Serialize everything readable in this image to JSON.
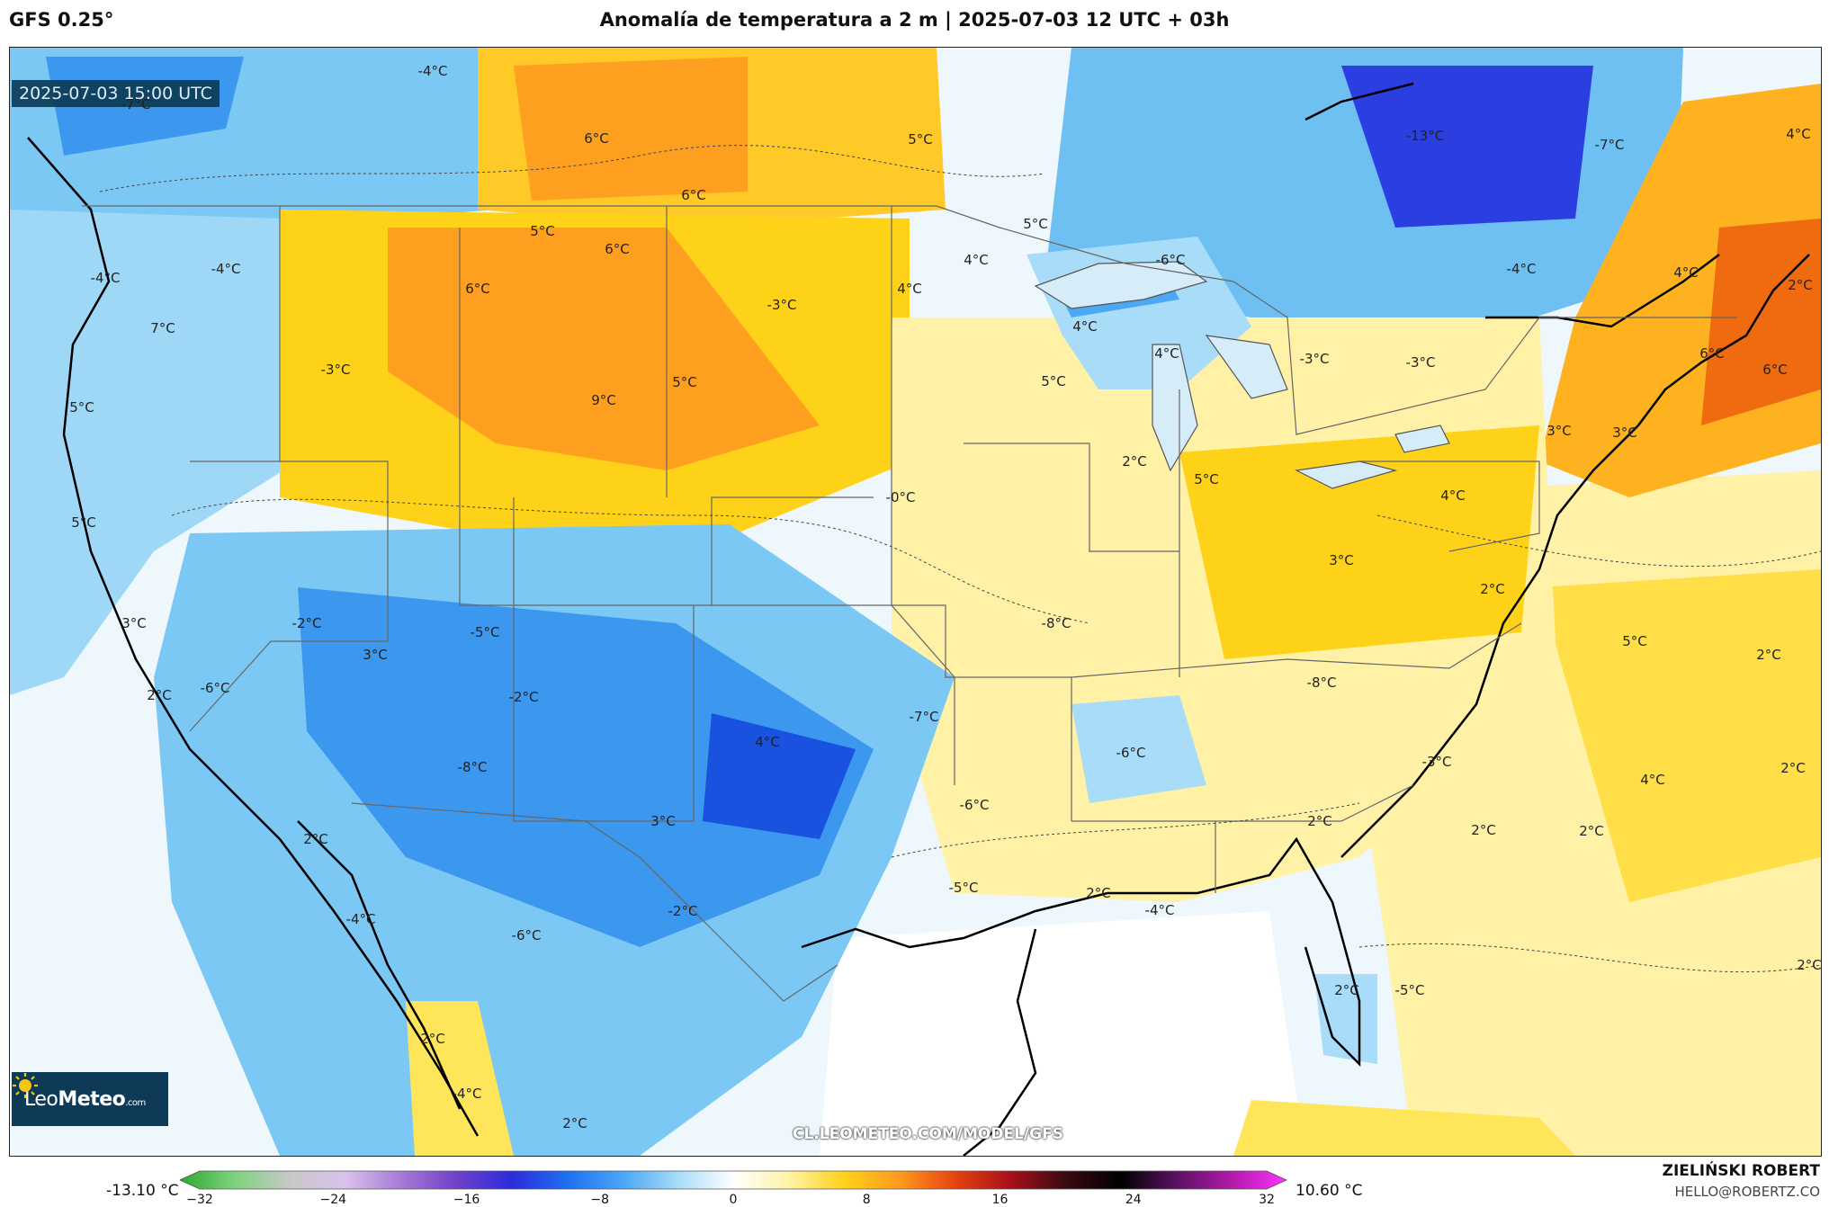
{
  "header": {
    "model": "GFS 0.25°",
    "title": "Anomalía de temperatura a 2 m | 2025-07-03 12 UTC + 03h"
  },
  "map": {
    "valid_time": "2025-07-03 15:00 UTC",
    "watermark": "CL.LEOMETEO.COM/MODEL/GFS",
    "logo": {
      "brand_light": "Leo",
      "brand_bold": "Meteo",
      "suffix": ".com",
      "icon": "sun-icon"
    },
    "labels": [
      "-4°C",
      "-7°C",
      "6°C",
      "6°C",
      "5°C",
      "5°C",
      "-13°C",
      "-7°C",
      "4°C",
      "-4°C",
      "-4°C",
      "5°C",
      "6°C",
      "6°C",
      "4°C",
      "4°C",
      "-6°C",
      "4°C",
      "-4°C",
      "7°C",
      "-3°C",
      "4°C",
      "4°C",
      "-3°C",
      "-3°C",
      "2°C",
      "6°C",
      "5°C",
      "-3°C",
      "5°C",
      "9°C",
      "5°C",
      "3°C",
      "6°C",
      "2°C",
      "5°C",
      "3°C",
      "5°C",
      "-0°C",
      "4°C",
      "3°C",
      "3°C",
      "-2°C",
      "-5°C",
      "-8°C",
      "2°C",
      "5°C",
      "2°C",
      "3°C",
      "-6°C",
      "2°C",
      "-2°C",
      "-7°C",
      "-8°C",
      "4°C",
      "-8°C",
      "-6°C",
      "-3°C",
      "4°C",
      "2°C",
      "3°C",
      "-6°C",
      "2°C",
      "2°C",
      "2°C",
      "2°C",
      "-4°C",
      "-2°C",
      "-6°C",
      "-5°C",
      "2°C",
      "-4°C",
      "2°C",
      "-5°C",
      "2°C",
      "-4°C",
      "2°C",
      "2°C"
    ]
  },
  "legend": {
    "min_label": "-13.10 °C",
    "max_label": "10.60 °C",
    "ticks": [
      "−32",
      "−24",
      "−16",
      "−8",
      "0",
      "8",
      "16",
      "24",
      "32"
    ],
    "colors": [
      "#2ea82e",
      "#7fd37f",
      "#c8c8c8",
      "#d9c2ec",
      "#a57ad6",
      "#7040c8",
      "#2c2cdc",
      "#1f6ff0",
      "#49a6f7",
      "#a8dcf8",
      "#ffffff",
      "#fff3a8",
      "#ffd21a",
      "#ff9b1f",
      "#e6440f",
      "#a8101a",
      "#3a0a12",
      "#000000",
      "#5a1060",
      "#b01aa8",
      "#ff33ff"
    ]
  },
  "credit": {
    "author": "ZIELIŃSKI ROBERT",
    "email": "HELLO@ROBERTZ.CO"
  }
}
